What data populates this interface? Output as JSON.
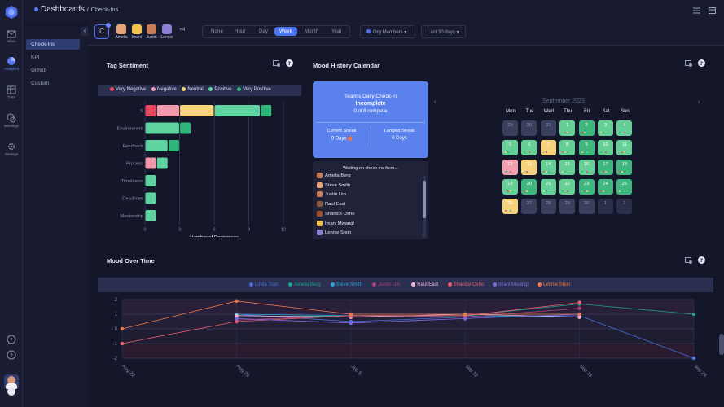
{
  "breadcrumb": {
    "title": "Dashboards",
    "separator": "/",
    "sub": "Check-Ins"
  },
  "rail": [
    {
      "label": "Inbox",
      "icon": "inbox-icon"
    },
    {
      "label": "Analytics",
      "icon": "analytics-icon"
    },
    {
      "label": "Data",
      "icon": "table-icon"
    },
    {
      "label": "Meetings",
      "icon": "chat-icon"
    },
    {
      "label": "Settings",
      "icon": "gear-icon"
    }
  ],
  "subnav": [
    "Check-Ins",
    "KPI",
    "Github",
    "Custom"
  ],
  "filters": {
    "group_letter": "C",
    "members": [
      "Amelia",
      "Imani",
      "Justin",
      "Lennie"
    ],
    "more": "+4",
    "ranges": [
      "None",
      "Hour",
      "Day",
      "Week",
      "Month",
      "Year"
    ],
    "active_range": "Week",
    "org_members": "Org Members",
    "period": "Last 30 days"
  },
  "tag_sentiment": {
    "title": "Tag Sentiment",
    "legend": [
      {
        "name": "Very Negative",
        "color": "#e8465f"
      },
      {
        "name": "Negative",
        "color": "#f29aab"
      },
      {
        "name": "Neutral",
        "color": "#f8d57a"
      },
      {
        "name": "Positive",
        "color": "#5fd3a0"
      },
      {
        "name": "Very Positive",
        "color": "#2fb57c"
      }
    ]
  },
  "mood_calendar": {
    "title": "Mood History Calendar",
    "card": {
      "title": "Team's Daily Check-in",
      "status": "Incomplete",
      "progress": "0 of 8 complete",
      "current_label": "Current Streak",
      "current_value": "0 Days",
      "longest_label": "Longest Streak",
      "longest_value": "0 Days"
    },
    "waiting_title": "Waiting on check-ins from...",
    "waiting": [
      "Amelia Berg",
      "Steve Smith",
      "Justin Lim",
      "Raul East",
      "Shanice Osho",
      "Imani Mwangi",
      "Lennie Stein"
    ],
    "month": "September 2023",
    "weekdays": [
      "Mon",
      "Tue",
      "Wed",
      "Thu",
      "Fri",
      "Sat",
      "Sun"
    ],
    "weeks": [
      [
        {
          "d": "29",
          "m": "none"
        },
        {
          "d": "30",
          "m": "none"
        },
        {
          "d": "31",
          "m": "none"
        },
        {
          "d": "1",
          "m": "pos"
        },
        {
          "d": "2",
          "m": "vpos"
        },
        {
          "d": "3",
          "m": "pos"
        },
        {
          "d": "4",
          "m": "pos"
        }
      ],
      [
        {
          "d": "5",
          "m": "pos"
        },
        {
          "d": "6",
          "m": "pos"
        },
        {
          "d": "7",
          "m": "neu"
        },
        {
          "d": "8",
          "m": "pos"
        },
        {
          "d": "9",
          "m": "vpos"
        },
        {
          "d": "10",
          "m": "pos"
        },
        {
          "d": "11",
          "m": "pos"
        }
      ],
      [
        {
          "d": "12",
          "m": "neg"
        },
        {
          "d": "13",
          "m": "neu"
        },
        {
          "d": "14",
          "m": "pos"
        },
        {
          "d": "15",
          "m": "pos"
        },
        {
          "d": "16",
          "m": "pos"
        },
        {
          "d": "17",
          "m": "vpos"
        },
        {
          "d": "18",
          "m": "vpos"
        }
      ],
      [
        {
          "d": "19",
          "m": "pos"
        },
        {
          "d": "20",
          "m": "vpos"
        },
        {
          "d": "21",
          "m": "pos"
        },
        {
          "d": "22",
          "m": "pos"
        },
        {
          "d": "23",
          "m": "vpos"
        },
        {
          "d": "24",
          "m": "vpos"
        },
        {
          "d": "25",
          "m": "vpos"
        }
      ],
      [
        {
          "d": "26",
          "m": "neu"
        },
        {
          "d": "27",
          "m": "none"
        },
        {
          "d": "28",
          "m": "none"
        },
        {
          "d": "29",
          "m": "none"
        },
        {
          "d": "30",
          "m": "none"
        },
        {
          "d": "1",
          "m": "out"
        },
        {
          "d": "2",
          "m": "out"
        }
      ]
    ],
    "mood_colors": {
      "none": "#3a3f5e",
      "out": "#2a2e48",
      "pos": "#66cf96",
      "vpos": "#3fb77e",
      "neu": "#f7d27c",
      "neg": "#f4a1af"
    }
  },
  "mood_over_time": {
    "title": "Mood Over Time"
  },
  "chart_data": [
    {
      "type": "bar",
      "orientation": "horizontal",
      "stacked": true,
      "title": "Tag Sentiment",
      "categories": [
        "S",
        "Environment",
        "Feedback",
        "Process",
        "Timeliness",
        "Deadlines",
        "Mentorship"
      ],
      "series": [
        {
          "name": "Very Negative",
          "values": [
            1,
            0,
            0,
            0,
            0,
            0,
            0
          ]
        },
        {
          "name": "Negative",
          "values": [
            2,
            0,
            0,
            1,
            0,
            0,
            0
          ]
        },
        {
          "name": "Neutral",
          "values": [
            3,
            0,
            0,
            0,
            0,
            0,
            0
          ]
        },
        {
          "name": "Positive",
          "values": [
            4,
            3,
            2,
            1,
            1,
            1,
            1
          ]
        },
        {
          "name": "Very Positive",
          "values": [
            1,
            1,
            1,
            0,
            0,
            0,
            0
          ]
        }
      ],
      "xlabel": "Number of Responses",
      "xlim": [
        0,
        12
      ],
      "xticks": [
        0,
        3,
        6,
        9,
        12
      ],
      "grid": true,
      "legend": "top"
    },
    {
      "type": "line",
      "title": "Mood Over Time",
      "x": [
        "Aug 22",
        "Aug 29",
        "Sep 5",
        "Sep 12",
        "Sep 19",
        "Sep 26"
      ],
      "ylim": [
        -2,
        2
      ],
      "yticks": [
        -2,
        -1,
        0,
        1,
        2
      ],
      "series": [
        {
          "name": "Linda Tran",
          "color": "#4a6fe0",
          "values": [
            null,
            1.0,
            0.5,
            0.8,
            0.9,
            -2.0
          ]
        },
        {
          "name": "Amelia Berg",
          "color": "#1f9e8e",
          "values": [
            null,
            0.8,
            0.9,
            0.9,
            1.7,
            1.0
          ]
        },
        {
          "name": "Steve Smith",
          "color": "#2a9fd8",
          "values": [
            null,
            1.0,
            0.9,
            0.9,
            0.8,
            null
          ]
        },
        {
          "name": "Justin Lim",
          "color": "#a8417a",
          "values": [
            null,
            0.6,
            0.9,
            0.8,
            1.4,
            null
          ]
        },
        {
          "name": "Raul East",
          "color": "#f2b3d3",
          "values": [
            null,
            0.9,
            0.8,
            1.0,
            0.8,
            null
          ]
        },
        {
          "name": "Shanice Osho",
          "color": "#e85d6a",
          "values": [
            -1.0,
            0.5,
            0.9,
            0.9,
            1.8,
            null
          ]
        },
        {
          "name": "Imani Mwangi",
          "color": "#7b6ee0",
          "values": [
            null,
            0.7,
            0.4,
            0.7,
            1.0,
            null
          ]
        },
        {
          "name": "Lennie Stein",
          "color": "#e8784a",
          "values": [
            0.0,
            1.9,
            1.0,
            1.0,
            1.0,
            null
          ]
        }
      ],
      "grid": true,
      "legend": "top"
    }
  ]
}
